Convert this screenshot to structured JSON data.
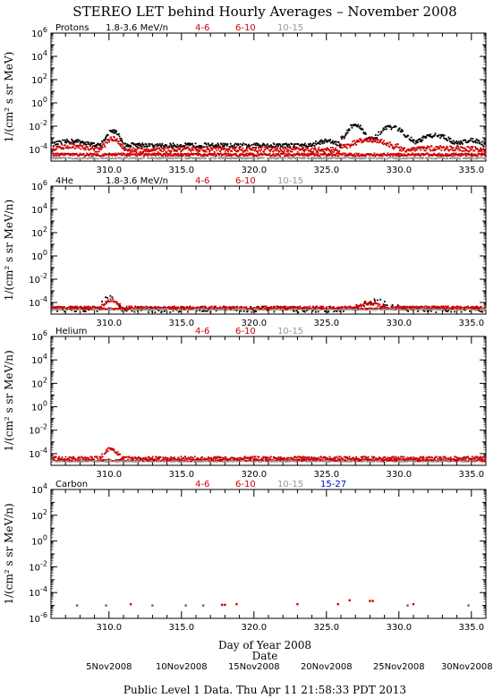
{
  "title": "STEREO LET behind Hourly Averages – November 2008",
  "footer": "Public Level 1 Data. Thu Apr 11 21:58:33 PDT 2013",
  "colors": {
    "black": "#000000",
    "red": "#cc0000",
    "gray": "#999999",
    "blue": "#0000cc"
  },
  "chart_data": [
    {
      "type": "scatter",
      "panel_label": "Protons",
      "ylabel": "1/(cm² s sr MeV)",
      "yscale": "log",
      "ylim_exp": [
        -5,
        6
      ],
      "ytick_exps": [
        6,
        4,
        2,
        0,
        -2,
        -4
      ],
      "xlim": [
        306,
        336
      ],
      "legend": [
        {
          "text": "1.8-3.6 MeV/n",
          "color": "#000000"
        },
        {
          "text": "4-6",
          "color": "#cc0000"
        },
        {
          "text": "6-10",
          "color": "#cc0000"
        },
        {
          "text": "10-15",
          "color": "#999999"
        }
      ],
      "series": [
        {
          "color": "#000000",
          "base": -3.65,
          "spread": 0.18,
          "density": 0.9,
          "bumps": [
            [
              306,
              309,
              -3.3
            ],
            [
              309.5,
              311,
              -2.4
            ],
            [
              310,
              311,
              -3.4
            ],
            [
              311,
              313,
              -3.6
            ],
            [
              320,
              322,
              -3.7
            ],
            [
              324,
              326,
              -3.3
            ],
            [
              326,
              328,
              -1.9
            ],
            [
              328,
              331,
              -2.1
            ],
            [
              331,
              334,
              -2.8
            ],
            [
              334,
              336,
              -3.2
            ]
          ]
        },
        {
          "color": "#cc0000",
          "base": -4.05,
          "spread": 0.22,
          "density": 1.0,
          "bumps": [
            [
              306,
              309,
              -3.7
            ],
            [
              309.5,
              311,
              -3.1
            ],
            [
              311,
              326,
              -4.0
            ],
            [
              326,
              330,
              -3.2
            ],
            [
              330,
              336,
              -3.9
            ]
          ]
        },
        {
          "color": "#cc0000",
          "base": -4.45,
          "spread": 0.12,
          "density": 1.0,
          "bumps": []
        },
        {
          "color": "#999999",
          "base": -4.75,
          "spread": 0.06,
          "density": 0.7,
          "bumps": []
        }
      ]
    },
    {
      "type": "scatter",
      "panel_label": "4He",
      "ylabel": "1/(cm² s sr MeV/n)",
      "yscale": "log",
      "ylim_exp": [
        -5,
        6
      ],
      "ytick_exps": [
        6,
        4,
        2,
        0,
        -2,
        -4
      ],
      "xlim": [
        306,
        336
      ],
      "legend": [
        {
          "text": "1.8-3.6 MeV/n",
          "color": "#000000"
        },
        {
          "text": "4-6",
          "color": "#cc0000"
        },
        {
          "text": "6-10",
          "color": "#cc0000"
        },
        {
          "text": "10-15",
          "color": "#999999"
        }
      ],
      "series": [
        {
          "color": "#000000",
          "base": -4.6,
          "spread": 0.25,
          "density": 0.35,
          "bumps": [
            [
              309.5,
              310.8,
              -3.3
            ],
            [
              327,
              330,
              -3.9
            ]
          ]
        },
        {
          "color": "#cc0000",
          "base": -4.45,
          "spread": 0.12,
          "density": 0.9,
          "bumps": [
            [
              309.5,
              310.8,
              -3.8
            ],
            [
              327,
              329,
              -4.1
            ]
          ]
        },
        {
          "color": "#cc0000",
          "base": -4.55,
          "spread": 0.06,
          "density": 0.9,
          "bumps": []
        },
        {
          "color": "#999999",
          "base": -4.6,
          "spread": 0.05,
          "density": 0.4,
          "bumps": []
        }
      ]
    },
    {
      "type": "scatter",
      "panel_label": "Helium",
      "ylabel": "1/(cm² s sr MeV/n)",
      "yscale": "log",
      "ylim_exp": [
        -5,
        6
      ],
      "ytick_exps": [
        6,
        4,
        2,
        0,
        -2,
        -4
      ],
      "xlim": [
        306,
        336
      ],
      "legend": [
        {
          "text": "4-6",
          "color": "#cc0000"
        },
        {
          "text": "6-10",
          "color": "#cc0000"
        },
        {
          "text": "10-15",
          "color": "#999999"
        }
      ],
      "series": [
        {
          "color": "#cc0000",
          "base": -4.4,
          "spread": 0.15,
          "density": 0.9,
          "bumps": [
            [
              309.5,
              310.8,
              -3.6
            ]
          ]
        },
        {
          "color": "#cc0000",
          "base": -4.6,
          "spread": 0.07,
          "density": 0.9,
          "bumps": []
        },
        {
          "color": "#999999",
          "base": -4.65,
          "spread": 0.05,
          "density": 0.4,
          "bumps": []
        }
      ]
    },
    {
      "type": "scatter",
      "panel_label": "Carbon",
      "ylabel": "1/(cm² s sr MeV/n)",
      "yscale": "log",
      "ylim_exp": [
        -6,
        4
      ],
      "ytick_exps": [
        4,
        2,
        0,
        -2,
        -4,
        -6
      ],
      "xlim": [
        306,
        336
      ],
      "legend": [
        {
          "text": "4-6",
          "color": "#cc0000"
        },
        {
          "text": "6-10",
          "color": "#cc0000"
        },
        {
          "text": "10-15",
          "color": "#999999"
        },
        {
          "text": "15-27",
          "color": "#0000cc"
        }
      ],
      "points": [
        [
          307.8,
          -5.0,
          "#666666"
        ],
        [
          309.8,
          -5.0,
          "#666666"
        ],
        [
          311.5,
          -4.9,
          "#cc0000"
        ],
        [
          313.0,
          -5.0,
          "#666666"
        ],
        [
          315.3,
          -5.0,
          "#666666"
        ],
        [
          316.5,
          -5.0,
          "#666666"
        ],
        [
          317.8,
          -4.95,
          "#cc0000"
        ],
        [
          318.0,
          -4.95,
          "#cc0000"
        ],
        [
          318.8,
          -4.9,
          "#cc0000"
        ],
        [
          323.0,
          -4.9,
          "#cc0000"
        ],
        [
          325.8,
          -4.9,
          "#cc0000"
        ],
        [
          326.6,
          -4.6,
          "#cc0000"
        ],
        [
          328.0,
          -4.65,
          "#cc0000"
        ],
        [
          328.2,
          -4.65,
          "#cc0000"
        ],
        [
          330.6,
          -5.0,
          "#666666"
        ],
        [
          331.0,
          -4.9,
          "#cc0000"
        ],
        [
          334.8,
          -5.0,
          "#666666"
        ]
      ]
    }
  ],
  "xaxis": {
    "label": "Day of Year 2008",
    "ticks": [
      310.0,
      315.0,
      320.0,
      325.0,
      330.0,
      335.0
    ],
    "tick_labels": [
      "310.0",
      "315.0",
      "320.0",
      "325.0",
      "330.0",
      "335.0"
    ],
    "minor_step": 1,
    "date_title": "Date",
    "dates": [
      {
        "doy": 310,
        "text": "5Nov2008"
      },
      {
        "doy": 315,
        "text": "10Nov2008"
      },
      {
        "doy": 320,
        "text": "15Nov2008"
      },
      {
        "doy": 325,
        "text": "20Nov2008"
      },
      {
        "doy": 330,
        "text": "25Nov2008"
      },
      {
        "doy": 335,
        "text": "30Nov2008"
      }
    ]
  }
}
